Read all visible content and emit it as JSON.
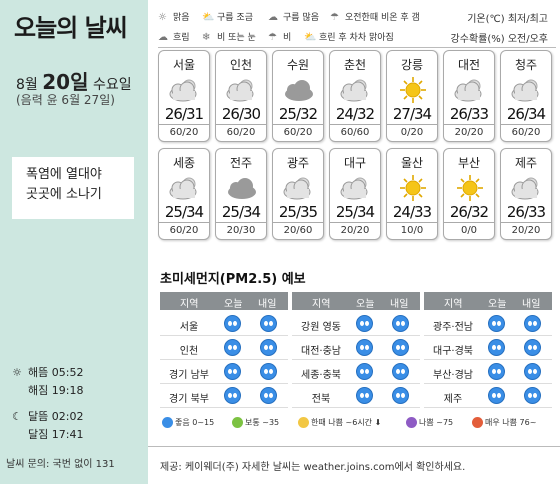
{
  "sidebar": {
    "title": "오늘의 날씨",
    "month": "8월",
    "day": "20일",
    "weekday": "수요일",
    "lunar": "(음력 윤 6월 27일)",
    "headline_line1": "폭염에 열대야",
    "headline_line2": "곳곳에 소나기",
    "sunrise": "해뜸 05:52",
    "sunset": "해짐 19:18",
    "moonrise": "달뜸 02:02",
    "moonset": "달짐 17:41",
    "inquiry": "날씨 문의: 국번 없이 131"
  },
  "legend": {
    "clear": "맑음",
    "few_clouds": "구름 조금",
    "cloudy_much": "구름 많음",
    "am_rain": "오전한때 비온 후 갬",
    "overcast": "흐림",
    "rain_or_snow": "비 또는 눈",
    "rain": "비",
    "rain_then_clear": "흐린 후 차차 맑아짐",
    "temp_note": "기온(℃) 최저/최고",
    "rain_note": "강수확률(%) 오전/오후"
  },
  "cities": [
    {
      "name": "서울",
      "icon": "cloudy-icon",
      "temp": "26/31",
      "rain": "60/20"
    },
    {
      "name": "인천",
      "icon": "cloudy-icon",
      "temp": "26/30",
      "rain": "60/20"
    },
    {
      "name": "수원",
      "icon": "overcast-icon",
      "temp": "25/32",
      "rain": "60/20"
    },
    {
      "name": "춘천",
      "icon": "cloudy-icon",
      "temp": "24/32",
      "rain": "60/60"
    },
    {
      "name": "강릉",
      "icon": "sun-icon",
      "temp": "27/34",
      "rain": "0/20"
    },
    {
      "name": "대전",
      "icon": "cloudy-icon",
      "temp": "26/33",
      "rain": "20/20"
    },
    {
      "name": "청주",
      "icon": "cloudy-icon",
      "temp": "26/34",
      "rain": "60/20"
    },
    {
      "name": "세종",
      "icon": "cloudy-icon",
      "temp": "25/34",
      "rain": "60/20"
    },
    {
      "name": "전주",
      "icon": "overcast-icon",
      "temp": "25/34",
      "rain": "20/30"
    },
    {
      "name": "광주",
      "icon": "cloudy-icon",
      "temp": "25/35",
      "rain": "20/60"
    },
    {
      "name": "대구",
      "icon": "cloudy-icon",
      "temp": "25/34",
      "rain": "20/20"
    },
    {
      "name": "울산",
      "icon": "sun-icon",
      "temp": "24/33",
      "rain": "10/0"
    },
    {
      "name": "부산",
      "icon": "sun-icon",
      "temp": "26/32",
      "rain": "0/0"
    },
    {
      "name": "제주",
      "icon": "cloudy-icon",
      "temp": "26/33",
      "rain": "20/20"
    }
  ],
  "dust": {
    "title": "초미세먼지(PM2.5) 예보",
    "col_region": "지역",
    "col_today": "오늘",
    "col_tomorrow": "내일",
    "regions": [
      "서울",
      "인천",
      "경기 남부",
      "경기 북부",
      "강원 영동",
      "대전·충남",
      "세종·충북",
      "전북",
      "광주·전남",
      "대구·경북",
      "부산·경남",
      "제주"
    ],
    "level_all": "좋음",
    "legend": {
      "good": "좋음 0~15",
      "normal": "보통 ~35",
      "bad_short": "한때 나쁨 ~6시간",
      "bad": "나쁨 ~75",
      "very_bad": "매우 나쁨 76~"
    },
    "colors": {
      "good": "#3a8ee6",
      "normal": "#7cc242",
      "bad_short": "#f2c744",
      "bad": "#8e5bc4",
      "very_bad": "#e35d3a"
    }
  },
  "credit": "제공: 케이웨더(주) 자세한 날씨는 weather.joins.com에서 확인하세요."
}
